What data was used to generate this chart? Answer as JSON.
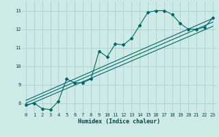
{
  "xlabel": "Humidex (Indice chaleur)",
  "bg_color": "#ceeae6",
  "grid_color": "#aacfcc",
  "line_color": "#006666",
  "xlim": [
    -0.5,
    23.5
  ],
  "ylim": [
    7.5,
    13.5
  ],
  "xticks": [
    0,
    1,
    2,
    3,
    4,
    5,
    6,
    7,
    8,
    9,
    10,
    11,
    12,
    13,
    14,
    15,
    16,
    17,
    18,
    19,
    20,
    21,
    22,
    23
  ],
  "yticks": [
    8,
    9,
    10,
    11,
    12,
    13
  ],
  "main_x": [
    0,
    1,
    2,
    3,
    4,
    5,
    6,
    7,
    8,
    9,
    10,
    11,
    12,
    13,
    14,
    15,
    16,
    17,
    18,
    19,
    20,
    21,
    22,
    23
  ],
  "main_y": [
    7.9,
    8.0,
    7.7,
    7.65,
    8.1,
    9.3,
    9.1,
    9.1,
    9.3,
    10.8,
    10.5,
    11.2,
    11.15,
    11.5,
    12.2,
    12.9,
    13.0,
    13.0,
    12.8,
    12.3,
    12.0,
    12.0,
    12.1,
    12.6
  ],
  "line1_x": [
    0,
    23
  ],
  "line1_y": [
    7.85,
    12.15
  ],
  "line2_x": [
    0,
    23
  ],
  "line2_y": [
    8.0,
    12.38
  ],
  "line3_x": [
    0,
    23
  ],
  "line3_y": [
    8.15,
    12.58
  ]
}
